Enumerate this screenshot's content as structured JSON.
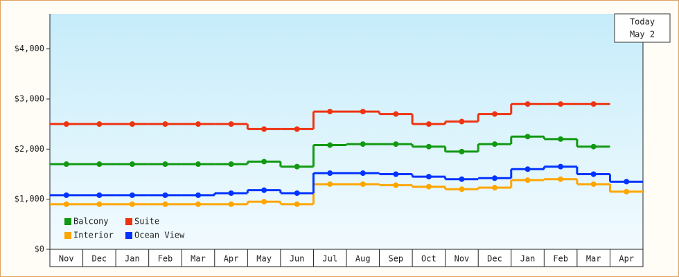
{
  "chart_data": {
    "type": "step-line",
    "annotation": [
      "Today",
      "May 2"
    ],
    "categories": [
      "Nov",
      "Dec",
      "Jan",
      "Feb",
      "Mar",
      "Apr",
      "May",
      "Jun",
      "Jul",
      "Aug",
      "Sep",
      "Oct",
      "Nov",
      "Dec",
      "Jan",
      "Feb",
      "Mar",
      "Apr"
    ],
    "series": [
      {
        "name": "Balcony",
        "color": "#119911",
        "values": [
          1700,
          1700,
          1700,
          1700,
          1700,
          1700,
          1750,
          1650,
          2080,
          2100,
          2100,
          2050,
          1950,
          2100,
          2250,
          2200,
          2050,
          null
        ]
      },
      {
        "name": "Suite",
        "color": "#ee3311",
        "values": [
          2500,
          2500,
          2500,
          2500,
          2500,
          2500,
          2400,
          2400,
          2750,
          2750,
          2700,
          2500,
          2550,
          2700,
          2900,
          2900,
          2900,
          null
        ]
      },
      {
        "name": "Interior",
        "color": "#ffa500",
        "values": [
          900,
          900,
          900,
          900,
          900,
          900,
          950,
          900,
          1300,
          1300,
          1280,
          1250,
          1200,
          1230,
          1380,
          1400,
          1300,
          1150
        ]
      },
      {
        "name": "Ocean View",
        "color": "#0033ff",
        "values": [
          1080,
          1080,
          1080,
          1080,
          1080,
          1120,
          1180,
          1120,
          1520,
          1520,
          1500,
          1450,
          1400,
          1420,
          1600,
          1650,
          1500,
          1350
        ]
      }
    ],
    "ylim": [
      0,
      4700
    ],
    "yticks": [
      {
        "value": 0,
        "label": "$0"
      },
      {
        "value": 1000,
        "label": "$1,000"
      },
      {
        "value": 2000,
        "label": "$2,000"
      },
      {
        "value": 3000,
        "label": "$3,000"
      },
      {
        "value": 4000,
        "label": "$4,000"
      }
    ]
  }
}
